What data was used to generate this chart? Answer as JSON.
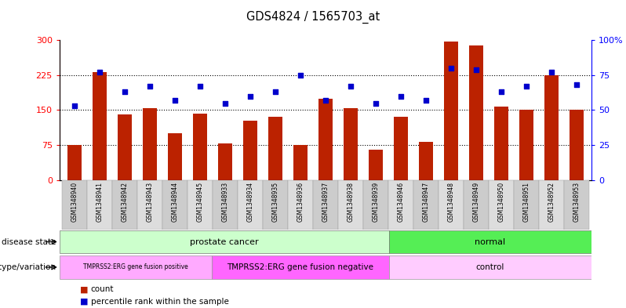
{
  "title": "GDS4824 / 1565703_at",
  "samples": [
    "GSM1348940",
    "GSM1348941",
    "GSM1348942",
    "GSM1348943",
    "GSM1348944",
    "GSM1348945",
    "GSM1348933",
    "GSM1348934",
    "GSM1348935",
    "GSM1348936",
    "GSM1348937",
    "GSM1348938",
    "GSM1348939",
    "GSM1348946",
    "GSM1348947",
    "GSM1348948",
    "GSM1348949",
    "GSM1348950",
    "GSM1348951",
    "GSM1348952",
    "GSM1348953"
  ],
  "counts": [
    75,
    232,
    140,
    155,
    100,
    143,
    78,
    128,
    135,
    75,
    175,
    155,
    65,
    135,
    82,
    297,
    288,
    157,
    150,
    225,
    150
  ],
  "percentile": [
    53,
    77,
    63,
    67,
    57,
    67,
    55,
    60,
    63,
    75,
    57,
    67,
    55,
    60,
    57,
    80,
    79,
    63,
    67,
    77,
    68
  ],
  "bar_color": "#bb2200",
  "dot_color": "#0000cc",
  "ylim_left": [
    0,
    300
  ],
  "ylim_right": [
    0,
    100
  ],
  "yticks_left": [
    0,
    75,
    150,
    225,
    300
  ],
  "yticks_right": [
    0,
    25,
    50,
    75,
    100
  ],
  "yticklabels_right": [
    "0",
    "25",
    "50",
    "75",
    "100%"
  ],
  "disease_state_groups": [
    {
      "label": "prostate cancer",
      "start": 0,
      "end": 13,
      "color": "#ccffcc"
    },
    {
      "label": "normal",
      "start": 13,
      "end": 21,
      "color": "#55ee55"
    }
  ],
  "genotype_groups": [
    {
      "label": "TMPRSS2:ERG gene fusion positive",
      "start": 0,
      "end": 6,
      "color": "#ffaaff"
    },
    {
      "label": "TMPRSS2:ERG gene fusion negative",
      "start": 6,
      "end": 13,
      "color": "#ff66ff"
    },
    {
      "label": "control",
      "start": 13,
      "end": 21,
      "color": "#ffccff"
    }
  ],
  "legend_count_label": "count",
  "legend_pct_label": "percentile rank within the sample",
  "disease_state_label": "disease state",
  "genotype_label": "genotype/variation",
  "bg_color": "white",
  "stripe_colors": [
    "#cccccc",
    "#dddddd"
  ]
}
